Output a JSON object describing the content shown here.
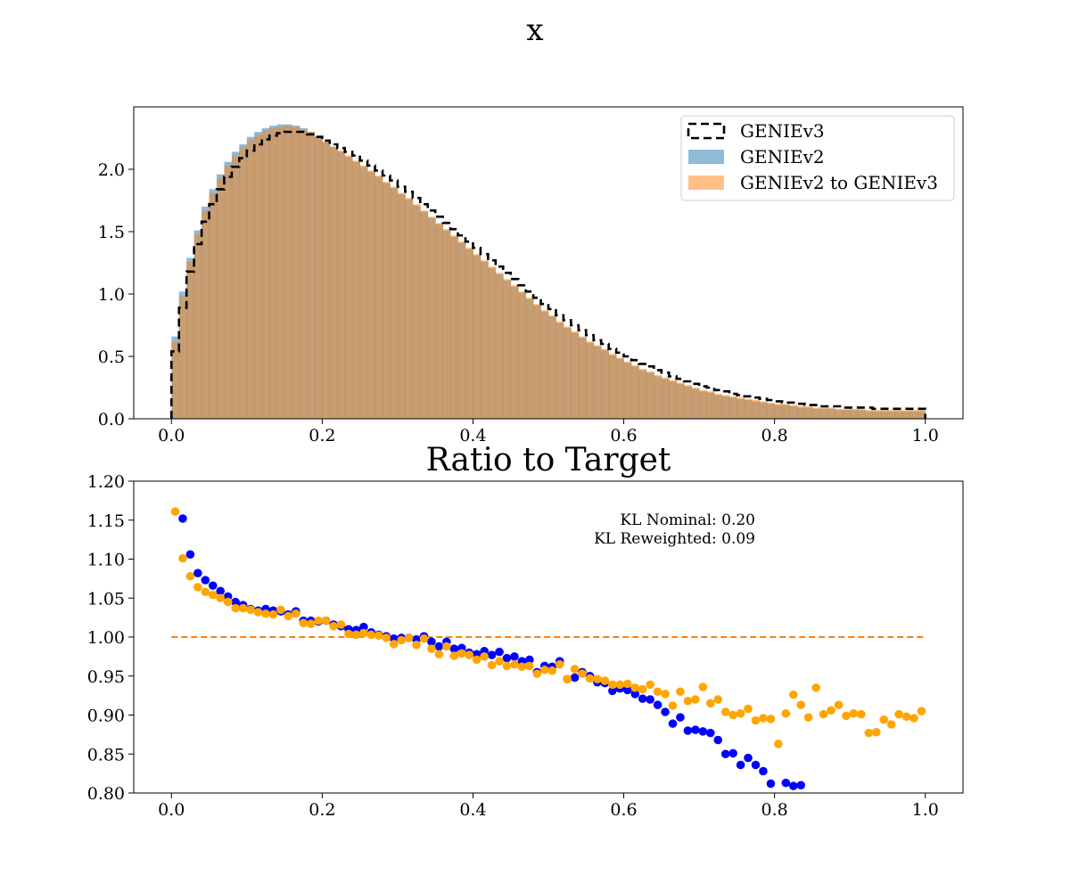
{
  "figure": {
    "suptitle": "x",
    "ratio_title": "Ratio to Target"
  },
  "colors": {
    "genie_v3_line": "#000000",
    "genie_v2_fill": "#1f77b4",
    "genie_v2_rw_fill": "#ff7f0e",
    "overlap_fill": "#c49c72",
    "nominal_ratio": "#0000ff",
    "reweighted_ratio": "#ffa500",
    "unity_line": "#ff7f0e"
  },
  "chart_data": [
    {
      "type": "histogram",
      "title": "",
      "xlabel": "",
      "ylabel": "",
      "xlim": [
        -0.05,
        1.05
      ],
      "ylim": [
        0,
        2.5
      ],
      "xticks": [
        "0.0",
        "0.2",
        "0.4",
        "0.6",
        "0.8",
        "1.0"
      ],
      "yticks": [
        "0.0",
        "0.5",
        "1.0",
        "1.5",
        "2.0"
      ],
      "grid": false,
      "legend_position": "top-right",
      "bins": {
        "start": 0.0,
        "end": 1.0,
        "count": 100
      },
      "series": [
        {
          "name": "GENIEv3",
          "style": "step-dashed",
          "values": [
            0.54,
            0.89,
            1.18,
            1.4,
            1.58,
            1.72,
            1.84,
            1.94,
            2.02,
            2.09,
            2.15,
            2.2,
            2.24,
            2.27,
            2.29,
            2.3,
            2.3,
            2.3,
            2.28,
            2.26,
            2.23,
            2.2,
            2.17,
            2.14,
            2.11,
            2.07,
            2.03,
            1.99,
            1.95,
            1.91,
            1.86,
            1.82,
            1.77,
            1.72,
            1.67,
            1.62,
            1.57,
            1.52,
            1.47,
            1.42,
            1.37,
            1.32,
            1.27,
            1.22,
            1.17,
            1.12,
            1.07,
            1.02,
            0.97,
            0.92,
            0.88,
            0.83,
            0.79,
            0.75,
            0.71,
            0.67,
            0.63,
            0.6,
            0.56,
            0.53,
            0.5,
            0.47,
            0.44,
            0.42,
            0.39,
            0.37,
            0.34,
            0.32,
            0.3,
            0.28,
            0.26,
            0.25,
            0.23,
            0.22,
            0.2,
            0.19,
            0.18,
            0.17,
            0.16,
            0.15,
            0.14,
            0.13,
            0.13,
            0.12,
            0.11,
            0.11,
            0.1,
            0.1,
            0.1,
            0.09,
            0.09,
            0.09,
            0.09,
            0.08,
            0.08,
            0.08,
            0.08,
            0.08,
            0.08,
            0.08
          ]
        },
        {
          "name": "GENIEv2",
          "style": "filled",
          "values": [
            0.66,
            1.02,
            1.29,
            1.51,
            1.7,
            1.84,
            1.96,
            2.06,
            2.14,
            2.2,
            2.26,
            2.3,
            2.33,
            2.35,
            2.36,
            2.36,
            2.35,
            2.33,
            2.3,
            2.26,
            2.22,
            2.18,
            2.14,
            2.1,
            2.06,
            2.02,
            1.98,
            1.94,
            1.89,
            1.85,
            1.8,
            1.76,
            1.71,
            1.66,
            1.61,
            1.56,
            1.51,
            1.46,
            1.41,
            1.36,
            1.31,
            1.26,
            1.21,
            1.16,
            1.11,
            1.06,
            1.01,
            0.96,
            0.91,
            0.86,
            0.82,
            0.77,
            0.73,
            0.69,
            0.65,
            0.61,
            0.58,
            0.55,
            0.51,
            0.48,
            0.45,
            0.42,
            0.39,
            0.37,
            0.34,
            0.32,
            0.3,
            0.28,
            0.26,
            0.24,
            0.22,
            0.21,
            0.19,
            0.18,
            0.17,
            0.16,
            0.15,
            0.14,
            0.13,
            0.12,
            0.11,
            0.11,
            0.1,
            0.09,
            0.09,
            0.08,
            0.08,
            0.08,
            0.07,
            0.07,
            0.07,
            0.07,
            0.06,
            0.06,
            0.06,
            0.06,
            0.06,
            0.06,
            0.06,
            0.06
          ]
        },
        {
          "name": "GENIEv2 to GENIEv3",
          "style": "filled",
          "values": [
            0.62,
            0.98,
            1.26,
            1.48,
            1.67,
            1.81,
            1.93,
            2.03,
            2.11,
            2.18,
            2.23,
            2.28,
            2.31,
            2.33,
            2.34,
            2.35,
            2.34,
            2.32,
            2.3,
            2.26,
            2.22,
            2.18,
            2.15,
            2.11,
            2.07,
            2.03,
            1.99,
            1.95,
            1.9,
            1.86,
            1.81,
            1.77,
            1.72,
            1.67,
            1.62,
            1.57,
            1.52,
            1.47,
            1.42,
            1.37,
            1.32,
            1.27,
            1.22,
            1.17,
            1.12,
            1.07,
            1.02,
            0.97,
            0.92,
            0.87,
            0.83,
            0.78,
            0.74,
            0.7,
            0.66,
            0.62,
            0.59,
            0.56,
            0.52,
            0.49,
            0.46,
            0.43,
            0.4,
            0.38,
            0.35,
            0.33,
            0.31,
            0.29,
            0.27,
            0.25,
            0.23,
            0.22,
            0.2,
            0.19,
            0.18,
            0.17,
            0.16,
            0.15,
            0.14,
            0.13,
            0.12,
            0.12,
            0.11,
            0.1,
            0.1,
            0.09,
            0.09,
            0.09,
            0.08,
            0.08,
            0.08,
            0.08,
            0.07,
            0.07,
            0.07,
            0.07,
            0.07,
            0.07,
            0.07,
            0.07
          ]
        }
      ]
    },
    {
      "type": "scatter",
      "title": "Ratio to Target",
      "xlabel": "",
      "ylabel": "",
      "xlim": [
        -0.05,
        1.05
      ],
      "ylim": [
        0.8,
        1.2
      ],
      "xticks": [
        "0.0",
        "0.2",
        "0.4",
        "0.6",
        "0.8",
        "1.0"
      ],
      "yticks": [
        "0.80",
        "0.85",
        "0.90",
        "0.95",
        "1.00",
        "1.05",
        "1.10",
        "1.15",
        "1.20"
      ],
      "grid": false,
      "annotations": [
        "KL Nominal: 0.20",
        "KL Reweighted: 0.09"
      ],
      "reference_line": {
        "y": 1.0,
        "x": [
          0.0,
          1.0
        ],
        "style": "dashed"
      },
      "x": [
        0.005,
        0.015,
        0.025,
        0.035,
        0.045,
        0.055,
        0.065,
        0.075,
        0.085,
        0.095,
        0.105,
        0.115,
        0.125,
        0.135,
        0.145,
        0.155,
        0.165,
        0.175,
        0.185,
        0.195,
        0.205,
        0.215,
        0.225,
        0.235,
        0.245,
        0.255,
        0.265,
        0.275,
        0.285,
        0.295,
        0.305,
        0.315,
        0.325,
        0.335,
        0.345,
        0.355,
        0.365,
        0.375,
        0.385,
        0.395,
        0.405,
        0.415,
        0.425,
        0.435,
        0.445,
        0.455,
        0.465,
        0.475,
        0.485,
        0.495,
        0.505,
        0.515,
        0.525,
        0.535,
        0.545,
        0.555,
        0.565,
        0.575,
        0.585,
        0.595,
        0.605,
        0.615,
        0.625,
        0.635,
        0.645,
        0.655,
        0.665,
        0.675,
        0.685,
        0.695,
        0.705,
        0.715,
        0.725,
        0.735,
        0.745,
        0.755,
        0.765,
        0.775,
        0.785,
        0.795,
        0.805,
        0.815,
        0.825,
        0.835,
        0.845,
        0.855,
        0.865,
        0.875,
        0.885,
        0.895,
        0.905,
        0.915,
        0.925,
        0.935,
        0.945,
        0.955,
        0.965,
        0.975,
        0.985,
        0.995
      ],
      "series": [
        {
          "name": "",
          "color": "nominal",
          "values": [
            null,
            1.152,
            1.106,
            1.082,
            1.073,
            1.066,
            1.059,
            1.052,
            1.045,
            1.041,
            1.036,
            1.034,
            1.036,
            1.034,
            1.033,
            1.029,
            1.033,
            1.021,
            1.021,
            1.02,
            1.021,
            1.016,
            1.014,
            1.01,
            1.009,
            1.013,
            1.006,
            1.003,
            1.001,
            0.998,
            0.999,
            0.999,
            0.997,
            1.001,
            0.994,
            0.988,
            0.994,
            0.985,
            0.986,
            0.98,
            0.978,
            0.982,
            0.977,
            0.981,
            0.973,
            0.975,
            0.969,
            0.971,
            0.955,
            0.963,
            0.962,
            0.969,
            0.946,
            0.948,
            0.955,
            0.95,
            0.942,
            0.941,
            0.931,
            0.934,
            0.932,
            0.927,
            0.921,
            0.92,
            0.913,
            0.904,
            0.889,
            0.897,
            0.88,
            0.881,
            0.879,
            0.877,
            0.868,
            0.85,
            0.851,
            0.836,
            0.845,
            0.836,
            0.828,
            0.812,
            null,
            0.813,
            0.809,
            0.81,
            null,
            null,
            null,
            null,
            null,
            null,
            null,
            null,
            null,
            null,
            null,
            null,
            null,
            null,
            null,
            null
          ]
        },
        {
          "name": "",
          "color": "reweighted",
          "values": [
            1.161,
            1.101,
            1.078,
            1.064,
            1.058,
            1.054,
            1.05,
            1.045,
            1.037,
            1.037,
            1.035,
            1.032,
            1.03,
            1.029,
            1.035,
            1.027,
            1.03,
            1.018,
            1.017,
            1.021,
            1.021,
            1.014,
            1.016,
            1.004,
            1.003,
            1.005,
            1.003,
            1.002,
            0.999,
            0.991,
            0.996,
            0.999,
            0.99,
            0.998,
            0.985,
            0.978,
            0.988,
            0.976,
            0.979,
            0.977,
            0.971,
            0.975,
            0.964,
            0.969,
            0.963,
            0.965,
            0.962,
            0.963,
            0.953,
            0.958,
            0.957,
            0.965,
            0.946,
            0.959,
            0.953,
            0.947,
            0.946,
            0.944,
            0.939,
            0.939,
            0.94,
            0.935,
            0.933,
            0.939,
            0.93,
            0.927,
            0.912,
            0.93,
            0.918,
            0.92,
            0.936,
            0.915,
            0.92,
            0.904,
            0.9,
            0.902,
            0.908,
            0.893,
            0.896,
            0.895,
            0.863,
            0.902,
            0.926,
            0.913,
            0.897,
            0.935,
            0.901,
            0.906,
            0.913,
            0.899,
            0.902,
            0.901,
            0.877,
            0.878,
            0.894,
            0.888,
            0.901,
            0.898,
            0.896,
            0.905
          ]
        }
      ]
    }
  ],
  "legend": {
    "items": [
      {
        "label": "GENIEv3",
        "key": "dashed-box"
      },
      {
        "label": "GENIEv2",
        "key": "blue-patch"
      },
      {
        "label": "GENIEv2 to GENIEv3",
        "key": "orange-patch"
      }
    ]
  }
}
